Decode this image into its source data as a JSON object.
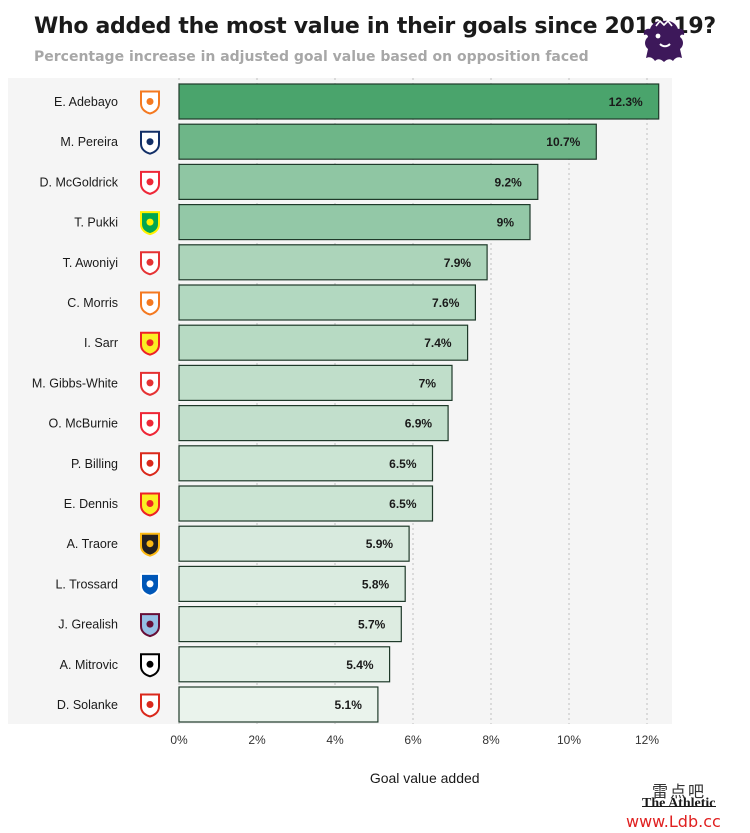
{
  "header": {
    "title": "Who added the most value in their goals since 2018-19?",
    "subtitle": "Percentage increase in adjusted goal value based on opposition faced"
  },
  "brand": {
    "league_logo": "premier-league-lion-logo",
    "publisher": "The Athletic",
    "watermark_cn": "雷点吧",
    "watermark_url": "www.Ldb.cc"
  },
  "colors": {
    "bar_dark": "#4aa46c",
    "bar_light": "#eaf3ec",
    "bar_stroke": "#1f3a2a",
    "grid": "#bfbfbf",
    "league_purple": "#3d185a"
  },
  "chart_data": {
    "type": "bar",
    "orientation": "horizontal",
    "categories": [
      "E. Adebayo",
      "M. Pereira",
      "D. McGoldrick",
      "T. Pukki",
      "T. Awoniyi",
      "C. Morris",
      "I. Sarr",
      "M. Gibbs-White",
      "O. McBurnie",
      "P. Billing",
      "E. Dennis",
      "A. Traore",
      "L. Trossard",
      "J. Grealish",
      "A. Mitrovic",
      "D. Solanke"
    ],
    "values": [
      12.3,
      10.7,
      9.2,
      9,
      7.9,
      7.6,
      7.4,
      7,
      6.9,
      6.5,
      6.5,
      5.9,
      5.8,
      5.7,
      5.4,
      5.1
    ],
    "value_labels": [
      "12.3%",
      "10.7%",
      "9.2%",
      "9%",
      "7.9%",
      "7.6%",
      "7.4%",
      "7%",
      "6.9%",
      "6.5%",
      "6.5%",
      "5.9%",
      "5.8%",
      "5.7%",
      "5.4%",
      "5.1%"
    ],
    "club_icons": [
      "luton-town-crest-icon",
      "west-brom-crest-icon",
      "sheffield-united-crest-icon",
      "norwich-city-crest-icon",
      "nottingham-forest-crest-icon",
      "luton-town-crest-icon",
      "watford-crest-icon",
      "nottingham-forest-crest-icon",
      "sheffield-united-crest-icon",
      "bournemouth-crest-icon",
      "watford-crest-icon",
      "wolves-crest-icon",
      "brighton-crest-icon",
      "aston-villa-crest-icon",
      "fulham-crest-icon",
      "bournemouth-crest-icon"
    ],
    "club_colors": [
      [
        "#ffffff",
        "#f47920"
      ],
      [
        "#ffffff",
        "#122f67"
      ],
      [
        "#ffffff",
        "#ee2737"
      ],
      [
        "#00a650",
        "#fff200"
      ],
      [
        "#ffffff",
        "#e53233"
      ],
      [
        "#ffffff",
        "#f47920"
      ],
      [
        "#fbee23",
        "#ed2127"
      ],
      [
        "#ffffff",
        "#e53233"
      ],
      [
        "#ffffff",
        "#ee2737"
      ],
      [
        "#ffffff",
        "#da291c"
      ],
      [
        "#fbee23",
        "#ed2127"
      ],
      [
        "#231f20",
        "#fdb913"
      ],
      [
        "#0057b8",
        "#ffffff"
      ],
      [
        "#95bfe5",
        "#670e36"
      ],
      [
        "#ffffff",
        "#000000"
      ],
      [
        "#ffffff",
        "#da291c"
      ]
    ],
    "xticks": [
      0,
      2,
      4,
      6,
      8,
      10,
      12
    ],
    "xtick_labels": [
      "0%",
      "2%",
      "4%",
      "6%",
      "8%",
      "10%",
      "12%"
    ],
    "xlim": [
      0,
      12.6
    ],
    "xlabel": "Goal value added",
    "ylabel": "",
    "grid": "vertical dotted"
  }
}
